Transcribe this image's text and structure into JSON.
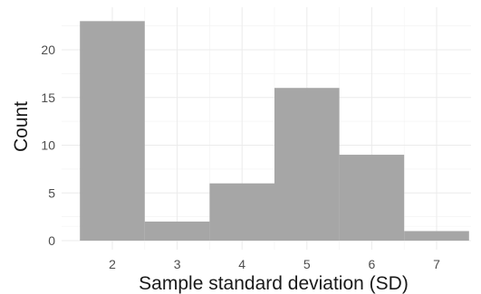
{
  "chart_data": {
    "type": "bar",
    "title": "",
    "xlabel": "Sample standard deviation (SD)",
    "ylabel": "Count",
    "xlim": [
      1.5,
      7.5
    ],
    "ylim": [
      0,
      23
    ],
    "x_ticks": [
      2,
      3,
      4,
      5,
      6,
      7
    ],
    "y_ticks": [
      0,
      5,
      10,
      15,
      20
    ],
    "bin_width": 1,
    "bins": [
      {
        "x": 2,
        "count": 23
      },
      {
        "x": 3,
        "count": 2
      },
      {
        "x": 4,
        "count": 6
      },
      {
        "x": 5,
        "count": 16
      },
      {
        "x": 6,
        "count": 9
      },
      {
        "x": 7,
        "count": 1
      }
    ],
    "bar_color": "#a6a6a6",
    "grid": true,
    "legend": "none"
  }
}
